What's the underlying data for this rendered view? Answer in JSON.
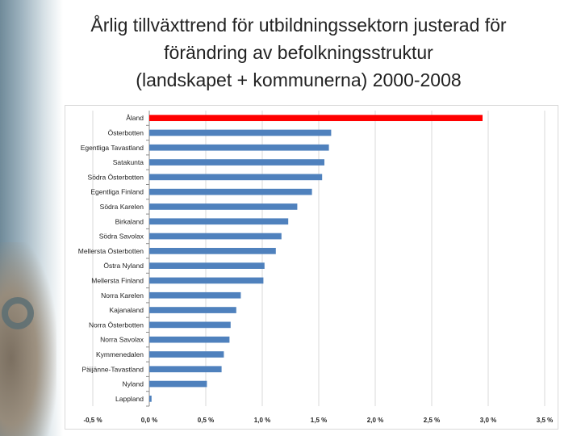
{
  "title_lines": [
    "Årlig tillväxttrend för utbildningssektorn justerad för",
    "förändring av befolkningsstruktur",
    "(landskapet + kommunerna) 2000-2008"
  ],
  "colors": {
    "bar": "#4f81bd",
    "highlight": "#ff0000",
    "grid": "#d9d9d9"
  },
  "chart_data": {
    "type": "bar",
    "orientation": "horizontal",
    "title": "Årlig tillväxttrend för utbildningssektorn justerad för förändring av befolkningsstruktur (landskapet + kommunerna) 2000-2008",
    "xlabel": "",
    "ylabel": "",
    "grid": true,
    "legend": "none",
    "xlim": [
      -0.5,
      3.5
    ],
    "x_ticks": [
      -0.5,
      0.0,
      0.5,
      1.0,
      1.5,
      2.0,
      2.5,
      3.0,
      3.5
    ],
    "x_tick_labels": [
      "-0,5 %",
      "0,0 %",
      "0,5 %",
      "1,0 %",
      "1,5 %",
      "2,0 %",
      "2,5 %",
      "3,0 %",
      "3,5 %"
    ],
    "categories": [
      "Åland",
      "Österbotten",
      "Egentliga Tavastland",
      "Satakunta",
      "Södra Österbotten",
      "Egentliga Finland",
      "Södra Karelen",
      "Birkaland",
      "Södra Savolax",
      "Mellersta Österbotten",
      "Östra Nyland",
      "Mellersta Finland",
      "Norra Karelen",
      "Kajanaland",
      "Norra Österbotten",
      "Norra Savolax",
      "Kymmenedalen",
      "Päijänne-Tavastland",
      "Nyland",
      "Lappland"
    ],
    "values": [
      2.95,
      1.61,
      1.59,
      1.55,
      1.53,
      1.44,
      1.31,
      1.23,
      1.17,
      1.12,
      1.02,
      1.01,
      0.81,
      0.77,
      0.72,
      0.71,
      0.66,
      0.64,
      0.51,
      0.02
    ],
    "highlight_index": 0
  }
}
